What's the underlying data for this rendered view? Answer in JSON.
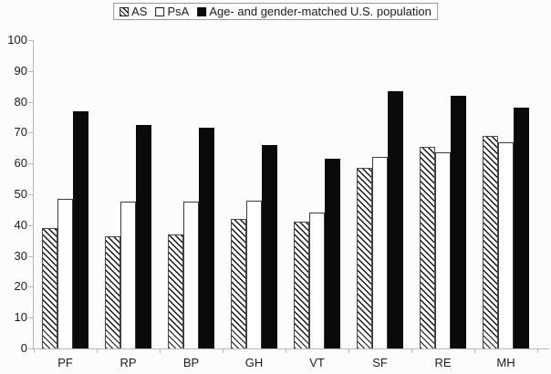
{
  "legend": {
    "items": [
      {
        "label": "AS",
        "swatch": "hatched"
      },
      {
        "label": "PsA",
        "swatch": "white"
      },
      {
        "label": "Age- and gender-matched U.S. population",
        "swatch": "black"
      }
    ]
  },
  "chart_data": {
    "type": "bar",
    "title": "",
    "xlabel": "",
    "ylabel": "",
    "categories": [
      "PF",
      "RP",
      "BP",
      "GH",
      "VT",
      "SF",
      "RE",
      "MH"
    ],
    "series": [
      {
        "name": "AS",
        "style": "hatched",
        "values": [
          39,
          36.5,
          37,
          42,
          41,
          58.5,
          65.5,
          69
        ]
      },
      {
        "name": "PsA",
        "style": "white",
        "values": [
          48.5,
          47.5,
          47.5,
          48,
          44,
          62,
          63.5,
          67
        ]
      },
      {
        "name": "Age- and gender-matched U.S. population",
        "style": "black",
        "values": [
          77,
          72.5,
          71.5,
          66,
          61.5,
          83.5,
          82,
          78
        ]
      }
    ],
    "ylim": [
      0,
      100
    ],
    "yticks": [
      0,
      10,
      20,
      30,
      40,
      50,
      60,
      70,
      80,
      90,
      100
    ],
    "grid": false,
    "legend_position": "top-center"
  },
  "colors": {
    "bar_black": "#0a0a0a",
    "bar_white": "#ffffff",
    "bar_outline": "#3c3c3c",
    "hatch_line": "#161616",
    "axis": "#b8b8b8",
    "text": "#1c1c1c",
    "legend_border": "#9a9a9a",
    "background": "#fcfcfc"
  }
}
